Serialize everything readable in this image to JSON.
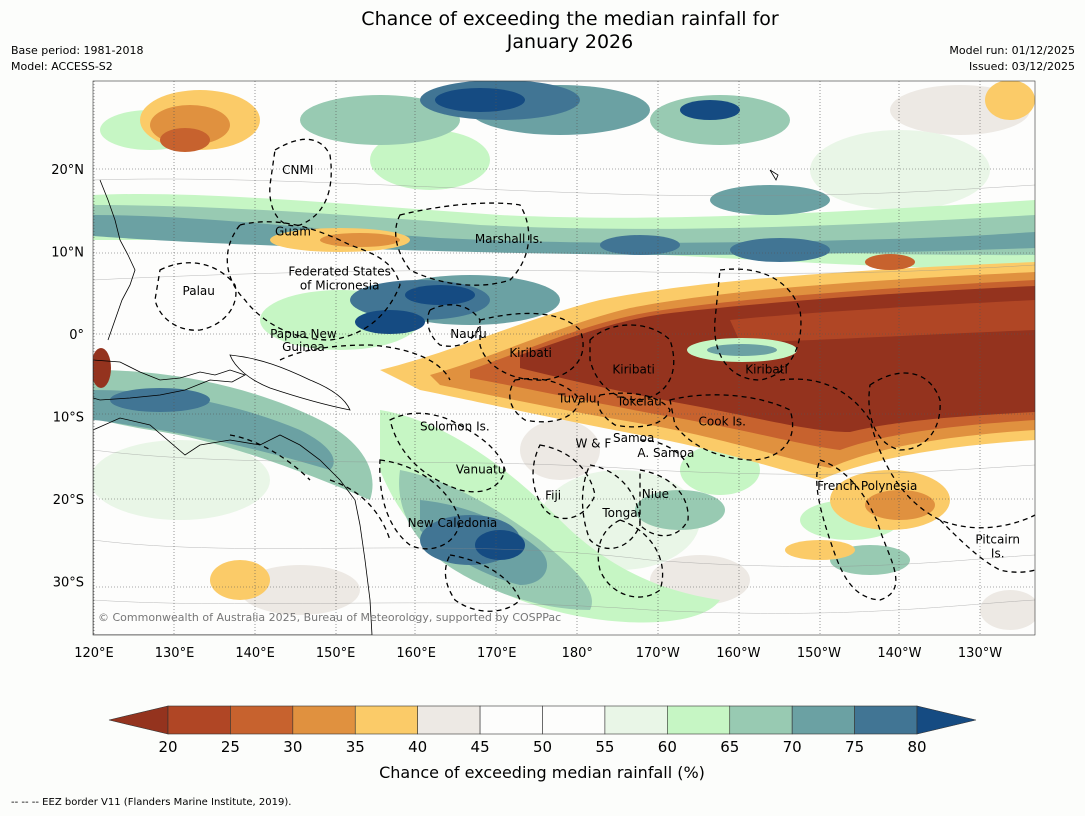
{
  "title_line1": "Chance of exceeding the median rainfall for",
  "title_line2": "January 2026",
  "meta_left": {
    "base_period": "Base period: 1981-2018",
    "model": "Model: ACCESS-S2"
  },
  "meta_right": {
    "model_run": "Model run: 01/12/2025",
    "issued": "Issued: 03/12/2025"
  },
  "map": {
    "lon_range_east": [
      120,
      235
    ],
    "lat_range": [
      -36,
      31
    ],
    "lat_ticks": [
      {
        "lat": 20,
        "label": "20°N"
      },
      {
        "lat": 10,
        "label": "10°N"
      },
      {
        "lat": 0,
        "label": "0°"
      },
      {
        "lat": -10,
        "label": "10°S"
      },
      {
        "lat": -20,
        "label": "20°S"
      },
      {
        "lat": -30,
        "label": "30°S"
      }
    ],
    "lon_ticks": [
      {
        "lon": 120,
        "label": "120°E"
      },
      {
        "lon": 130,
        "label": "130°E"
      },
      {
        "lon": 140,
        "label": "140°E"
      },
      {
        "lon": 150,
        "label": "150°E"
      },
      {
        "lon": 160,
        "label": "160°E"
      },
      {
        "lon": 170,
        "label": "170°E"
      },
      {
        "lon": 180,
        "label": "180°"
      },
      {
        "lon": 190,
        "label": "170°W"
      },
      {
        "lon": 200,
        "label": "160°W"
      },
      {
        "lon": 210,
        "label": "150°W"
      },
      {
        "lon": 220,
        "label": "140°W"
      },
      {
        "lon": 230,
        "label": "130°W"
      }
    ],
    "region_labels": [
      {
        "text": "CNMI",
        "lon": 145.3,
        "lat": 19.9
      },
      {
        "text": "Guam",
        "lon": 144.7,
        "lat": 12.4
      },
      {
        "text": "Marshall Is.",
        "lon": 171.5,
        "lat": 11.5
      },
      {
        "text": "Federated States",
        "lon": 150.5,
        "lat": 7.6
      },
      {
        "text": "of Micronesia",
        "lon": 150.5,
        "lat": 5.9
      },
      {
        "text": "Palau",
        "lon": 133.0,
        "lat": 5.2
      },
      {
        "text": "Papua New",
        "lon": 146.0,
        "lat": 0.0
      },
      {
        "text": "Guinea",
        "lon": 146.0,
        "lat": -1.6
      },
      {
        "text": "Nauru",
        "lon": 166.5,
        "lat": 0.0
      },
      {
        "text": "Kiribati",
        "lon": 174.2,
        "lat": -2.3
      },
      {
        "text": "Kiribati",
        "lon": 187.0,
        "lat": -4.3
      },
      {
        "text": "Kiribati",
        "lon": 203.5,
        "lat": -4.3
      },
      {
        "text": "Tuvalu",
        "lon": 180.0,
        "lat": -7.8
      },
      {
        "text": "Tokelau",
        "lon": 187.7,
        "lat": -8.2
      },
      {
        "text": "Cook Is.",
        "lon": 198.0,
        "lat": -10.6
      },
      {
        "text": "Solomon Is.",
        "lon": 164.8,
        "lat": -11.2
      },
      {
        "text": "Samoa",
        "lon": 187.0,
        "lat": -12.6
      },
      {
        "text": "W & F",
        "lon": 182.0,
        "lat": -13.3
      },
      {
        "text": "A. Samoa",
        "lon": 191.0,
        "lat": -14.4
      },
      {
        "text": "Vanuatu",
        "lon": 168.0,
        "lat": -16.4
      },
      {
        "text": "French Polynesia",
        "lon": 216.0,
        "lat": -18.4
      },
      {
        "text": "Fiji",
        "lon": 177.0,
        "lat": -19.6
      },
      {
        "text": "Niue",
        "lon": 189.7,
        "lat": -19.4
      },
      {
        "text": "Tonga",
        "lon": 185.3,
        "lat": -21.7
      },
      {
        "text": "New Caledonia",
        "lon": 164.5,
        "lat": -22.9
      },
      {
        "text": "Pitcairn",
        "lon": 232.2,
        "lat": -24.9
      },
      {
        "text": "Is.",
        "lon": 232.2,
        "lat": -26.6
      }
    ],
    "copyright": "© Commonwealth of Australia 2025, Bureau of Meteorology, supported by COSPPac"
  },
  "colorbar": {
    "ticks": [
      "20",
      "25",
      "30",
      "35",
      "40",
      "45",
      "50",
      "55",
      "60",
      "65",
      "70",
      "75",
      "80"
    ],
    "colors": [
      "#b04625",
      "#c7622e",
      "#e0913f",
      "#fbcb68",
      "#ede9e4",
      "#fdfdfc",
      "#fdfdfc",
      "#e9f6e7",
      "#c6f6c4",
      "#98cab2",
      "#6ba1a3",
      "#417594"
    ],
    "under_color": "#94331e",
    "over_color": "#154b82",
    "label": "Chance of exceeding median rainfall (%)"
  },
  "footer": "--  --  -- EEZ border V11 (Flanders Marine Institute, 2019)."
}
